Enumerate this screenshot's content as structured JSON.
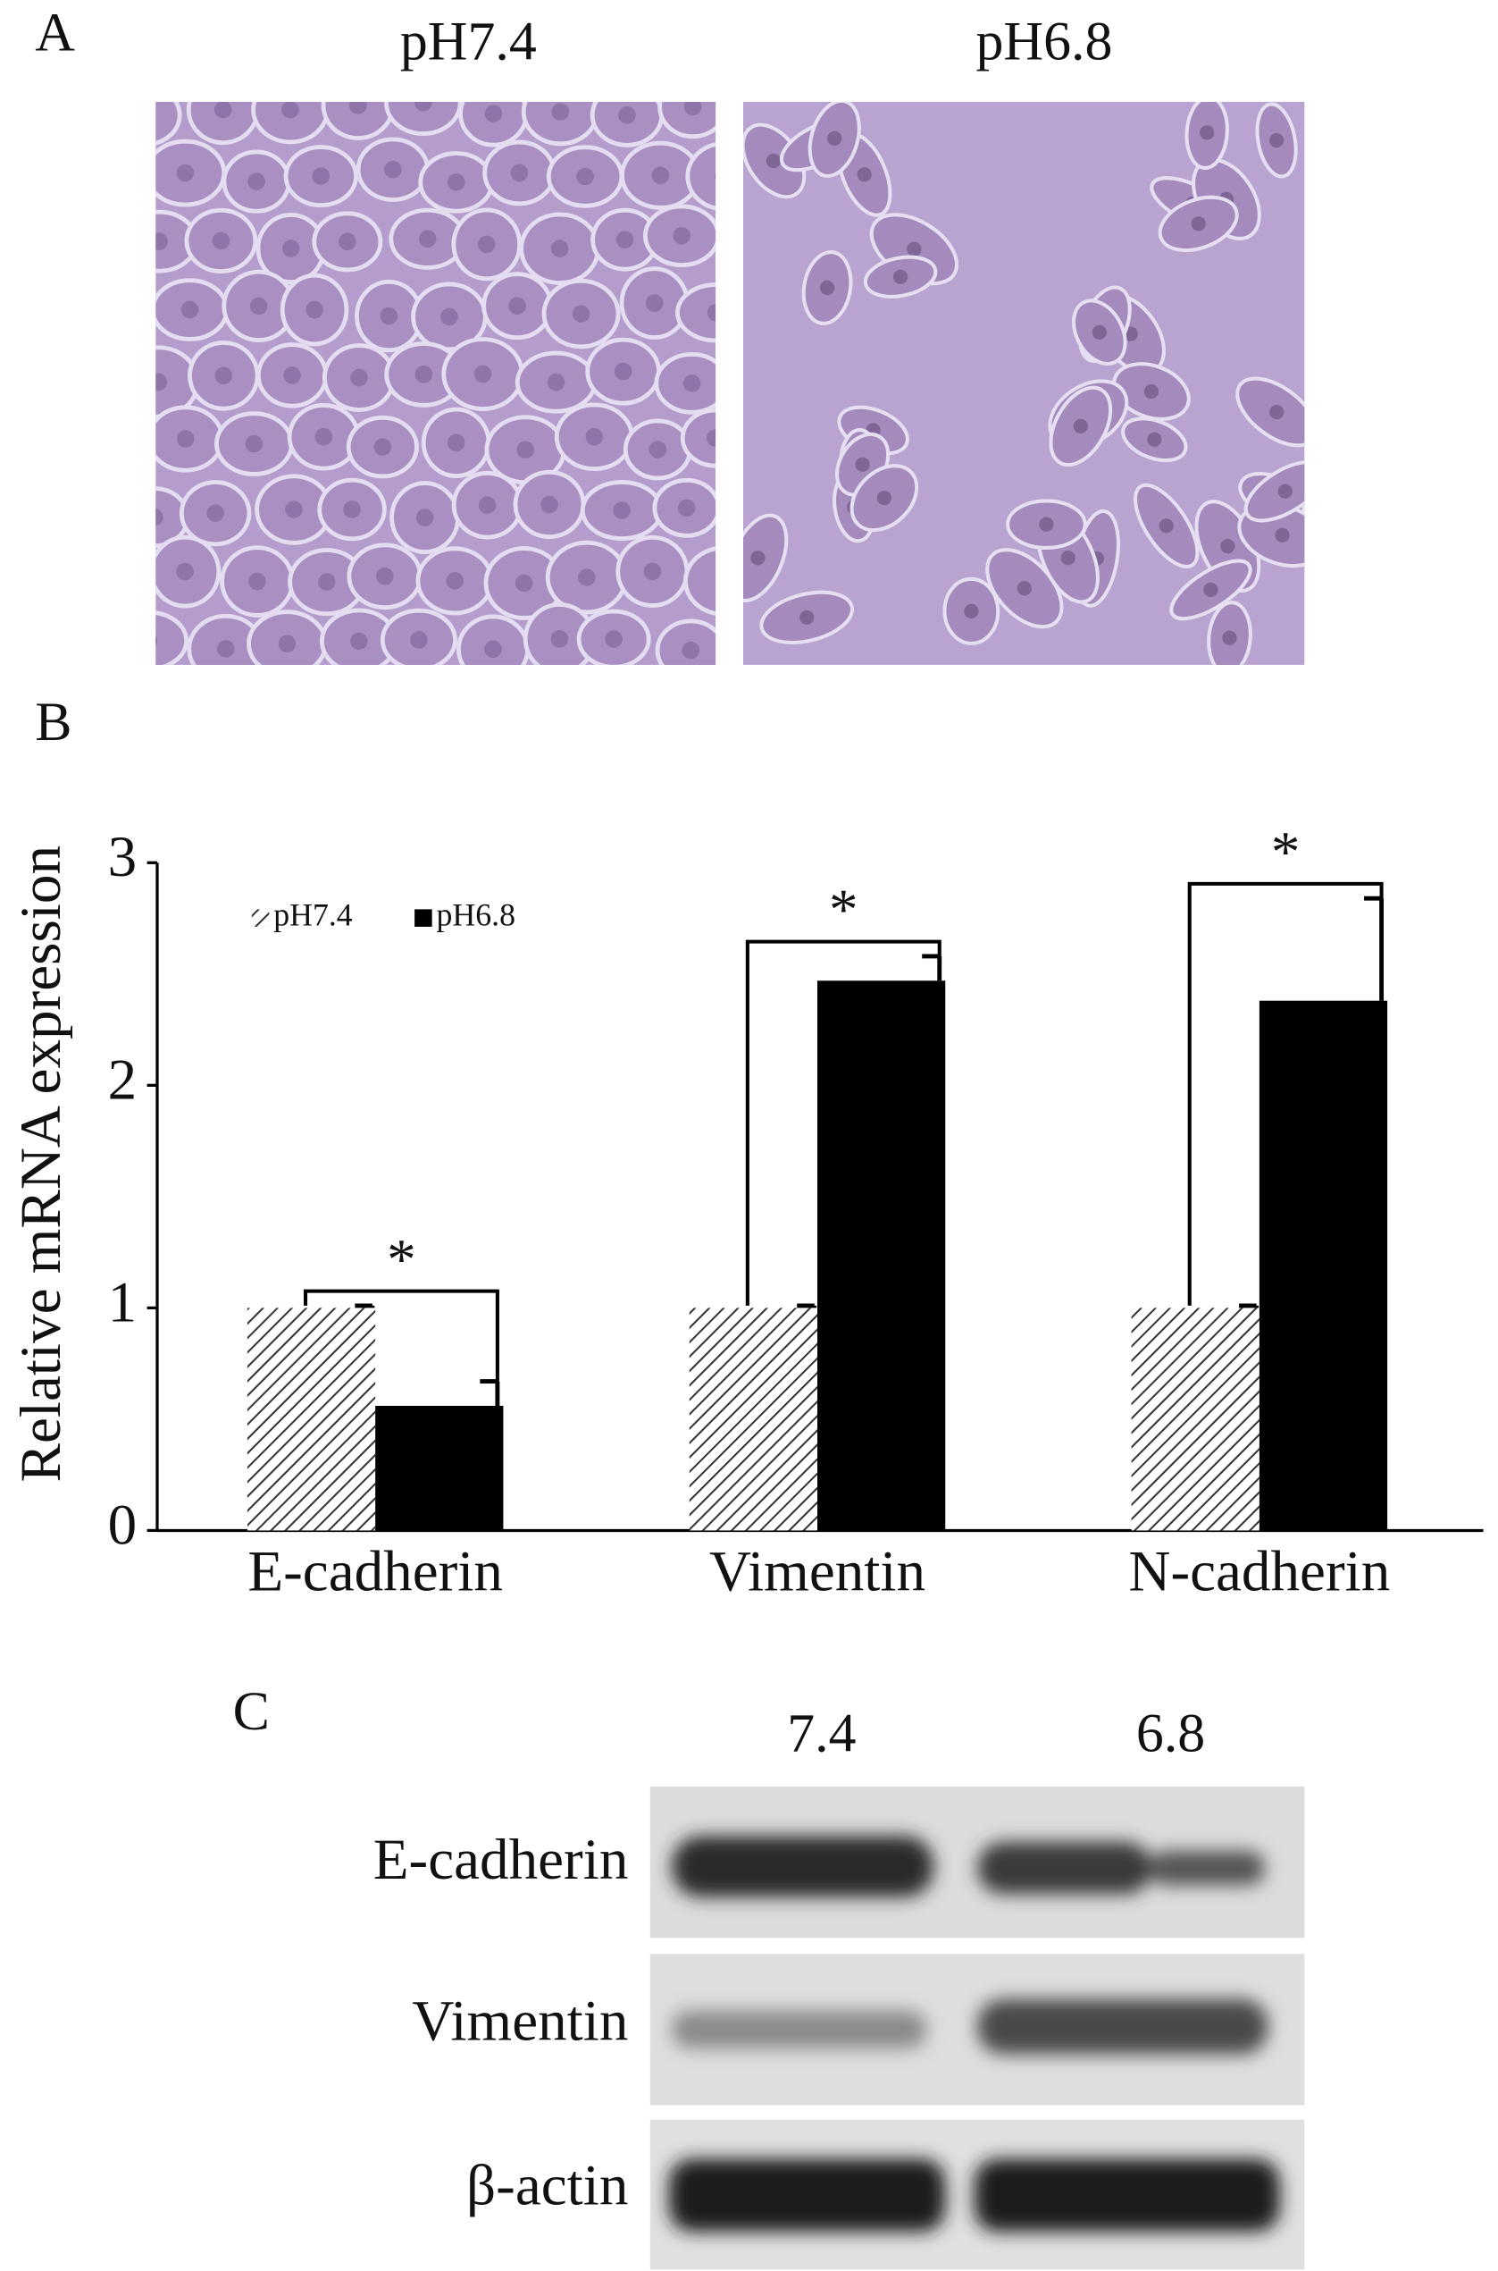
{
  "panel_a": {
    "label": "A",
    "images": [
      {
        "caption": "pH7.4"
      },
      {
        "caption": "pH6.8"
      }
    ]
  },
  "chart_data": {
    "type": "bar",
    "panel_label": "B",
    "y_label": "Relative mRNA expression",
    "categories": [
      "E-cadherin",
      "Vimentin",
      "N-cadherin"
    ],
    "series": [
      {
        "name": "pH7.4",
        "color": "#ffffff",
        "pattern": "hatch",
        "values": [
          1,
          1,
          1
        ],
        "errors": [
          0.01,
          0.01,
          0.01
        ]
      },
      {
        "name": "pH6.8",
        "color": "#000000",
        "values": [
          0.56,
          2.47,
          2.38
        ],
        "errors": [
          0.11,
          0.11,
          0.46
        ]
      }
    ],
    "ylim": [
      0,
      3
    ],
    "yticks": [
      0,
      1,
      2,
      3
    ],
    "annotations": [
      "*",
      "*",
      "*"
    ],
    "legend": "upper-left"
  },
  "panel_c": {
    "label": "C",
    "lanes": [
      "7.4",
      "6.8"
    ],
    "rows": [
      {
        "protein": "E-cadherin"
      },
      {
        "protein": "Vimentin"
      },
      {
        "protein": "β-actin"
      }
    ]
  }
}
